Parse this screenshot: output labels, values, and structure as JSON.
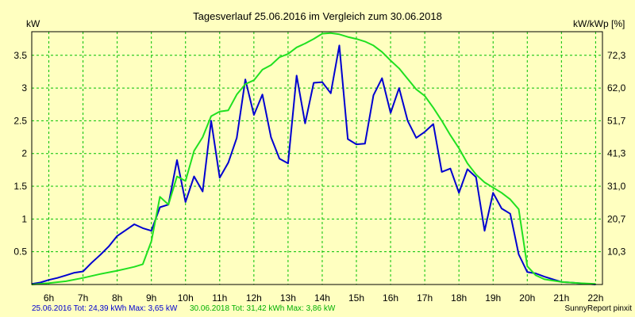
{
  "chart_data": {
    "type": "line",
    "title": "Tagesverlauf 25.06.2016 im Vergleich zum 30.06.2018",
    "ylabel_left": "kW",
    "ylabel_right": "kW/kWp [%]",
    "x_ticks": [
      "6h",
      "7h",
      "8h",
      "9h",
      "10h",
      "11h",
      "12h",
      "13h",
      "14h",
      "15h",
      "16h",
      "17h",
      "18h",
      "19h",
      "20h",
      "21h",
      "22h"
    ],
    "x_range": [
      5.5,
      22.2
    ],
    "y_ticks_left": [
      "0.5",
      "1",
      "1.5",
      "2",
      "2.5",
      "3",
      "3.5"
    ],
    "y_ticks_right": [
      "10,3",
      "20,7",
      "31,0",
      "41,3",
      "51,7",
      "62,0",
      "72,3"
    ],
    "y_range_left": [
      0,
      3.86
    ],
    "grid": true,
    "colors": {
      "background": "#ffffc0",
      "grid": "#00c000",
      "series_2016": "#0000d0",
      "series_2018": "#20e020"
    },
    "series": [
      {
        "name": "25.06.2016",
        "x": [
          5.5,
          5.75,
          6.0,
          6.25,
          6.5,
          6.75,
          7.0,
          7.25,
          7.5,
          7.75,
          8.0,
          8.25,
          8.5,
          8.75,
          9.0,
          9.25,
          9.5,
          9.75,
          10.0,
          10.25,
          10.5,
          10.75,
          11.0,
          11.25,
          11.5,
          11.75,
          12.0,
          12.25,
          12.5,
          12.75,
          13.0,
          13.25,
          13.5,
          13.75,
          14.0,
          14.25,
          14.5,
          14.75,
          15.0,
          15.25,
          15.5,
          15.75,
          16.0,
          16.25,
          16.5,
          16.75,
          17.0,
          17.25,
          17.5,
          17.75,
          18.0,
          18.25,
          18.5,
          18.75,
          19.0,
          19.25,
          19.5,
          19.75,
          20.0,
          20.25,
          20.5,
          20.75,
          21.0,
          21.5,
          22.0
        ],
        "values": [
          0.01,
          0.03,
          0.07,
          0.1,
          0.14,
          0.18,
          0.2,
          0.33,
          0.45,
          0.58,
          0.74,
          0.83,
          0.92,
          0.86,
          0.82,
          1.18,
          1.22,
          1.9,
          1.26,
          1.65,
          1.42,
          2.5,
          1.63,
          1.86,
          2.24,
          3.13,
          2.59,
          2.9,
          2.25,
          1.92,
          1.85,
          3.19,
          2.46,
          3.08,
          3.09,
          2.92,
          3.65,
          2.22,
          2.14,
          2.15,
          2.89,
          3.15,
          2.62,
          3.0,
          2.5,
          2.24,
          2.33,
          2.45,
          1.72,
          1.77,
          1.4,
          1.76,
          1.64,
          0.82,
          1.4,
          1.16,
          1.08,
          0.46,
          0.19,
          0.17,
          0.12,
          0.08,
          0.04,
          0.02,
          0.0
        ]
      },
      {
        "name": "30.06.2018",
        "x": [
          5.5,
          6.0,
          6.5,
          7.0,
          7.5,
          8.0,
          8.25,
          8.5,
          8.75,
          9.0,
          9.25,
          9.5,
          9.75,
          10.0,
          10.25,
          10.5,
          10.75,
          11.0,
          11.25,
          11.5,
          11.75,
          12.0,
          12.25,
          12.5,
          12.75,
          13.0,
          13.25,
          13.5,
          13.75,
          14.0,
          14.25,
          14.5,
          14.75,
          15.0,
          15.25,
          15.5,
          15.75,
          16.0,
          16.25,
          16.5,
          16.75,
          17.0,
          17.25,
          17.5,
          17.75,
          18.0,
          18.25,
          18.5,
          18.75,
          19.0,
          19.25,
          19.5,
          19.75,
          20.0,
          20.25,
          20.5,
          21.0,
          21.5,
          22.0
        ],
        "values": [
          0.0,
          0.02,
          0.05,
          0.1,
          0.16,
          0.21,
          0.24,
          0.27,
          0.31,
          0.66,
          1.34,
          1.22,
          1.65,
          1.58,
          2.04,
          2.25,
          2.57,
          2.64,
          2.66,
          2.9,
          3.06,
          3.12,
          3.28,
          3.35,
          3.47,
          3.52,
          3.62,
          3.68,
          3.75,
          3.83,
          3.84,
          3.82,
          3.78,
          3.75,
          3.71,
          3.65,
          3.55,
          3.42,
          3.3,
          3.14,
          2.98,
          2.88,
          2.7,
          2.5,
          2.28,
          2.08,
          1.85,
          1.68,
          1.56,
          1.48,
          1.4,
          1.3,
          1.15,
          0.28,
          0.14,
          0.08,
          0.04,
          0.02,
          0.01
        ]
      }
    ],
    "footer": {
      "series_2016_text": "25.06.2016 Tot: 24,39 kWh Max: 3,65 kW",
      "series_2018_text": "30.06.2018 Tot: 31,42 kWh Max: 3,86 kW",
      "credit": "SunnyReport pinxit"
    }
  }
}
